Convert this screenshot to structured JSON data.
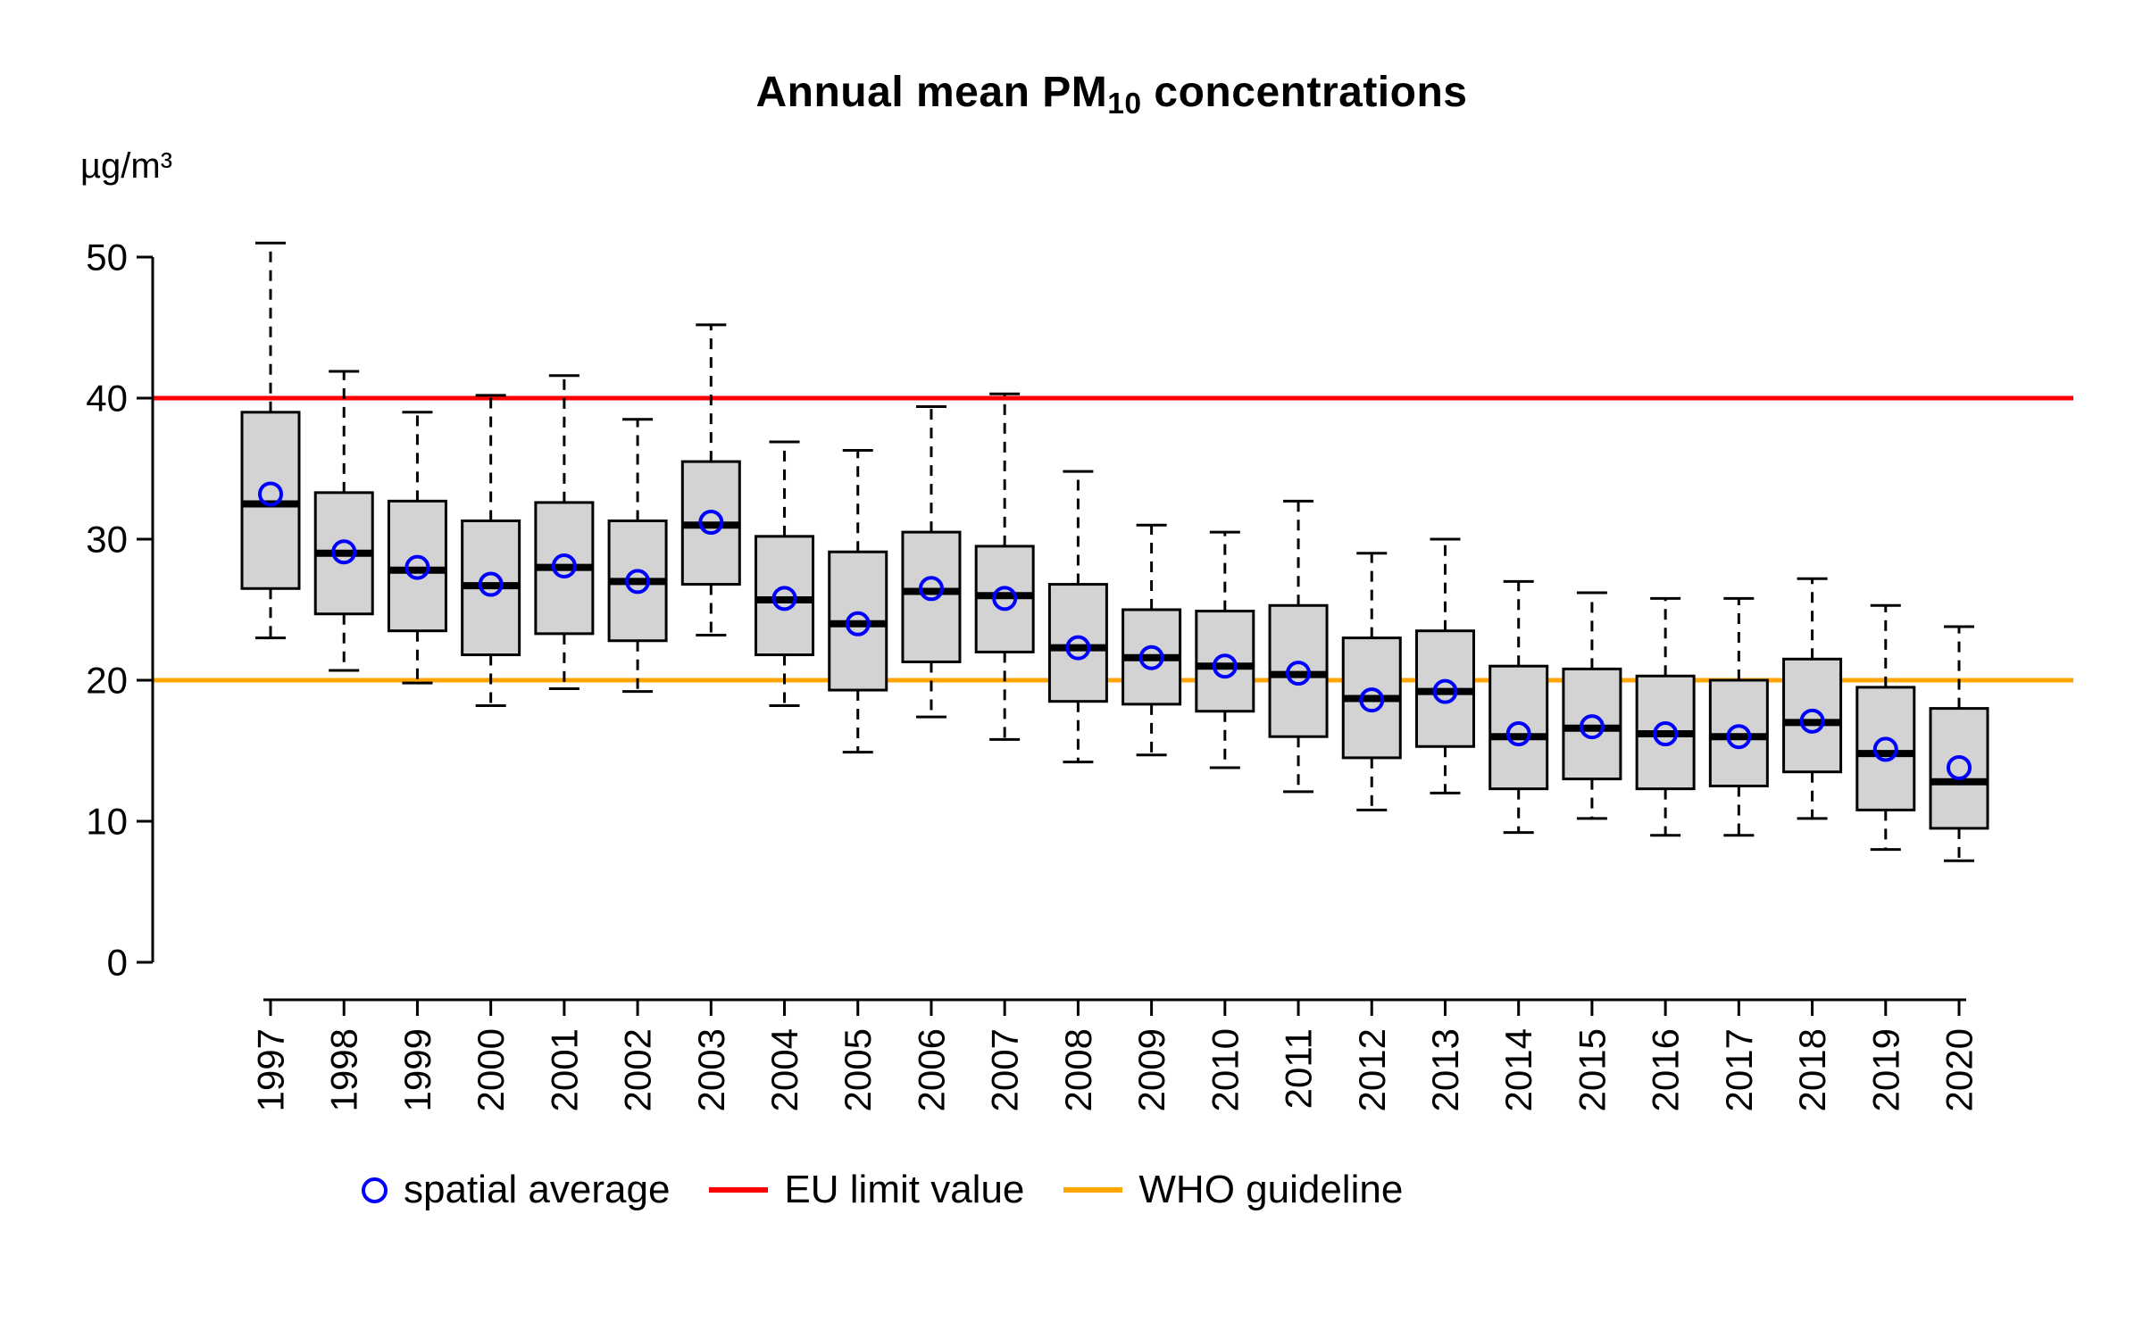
{
  "title": {
    "prefix": "Annual mean PM",
    "sub": "10",
    "suffix": " concentrations"
  },
  "y_axis": {
    "unit": "µg/m³",
    "ticks": [
      0,
      10,
      20,
      30,
      40,
      50
    ]
  },
  "legend": {
    "items": [
      {
        "label": "spatial average",
        "marker": "open-circle",
        "color": "#0000ff"
      },
      {
        "label": "EU limit value",
        "marker": "line",
        "color": "#ff0000"
      },
      {
        "label": "WHO guideline",
        "marker": "line",
        "color": "#ffa500"
      }
    ]
  },
  "colors": {
    "box_fill": "#d3d3d3",
    "box_stroke": "#000000",
    "mean_marker": "#0000ff",
    "eu_limit_line": "#ff0000",
    "who_guideline_line": "#ffa500",
    "axis": "#000000"
  },
  "chart_data": {
    "type": "boxplot",
    "title": "Annual mean PM10 concentrations",
    "xlabel": "",
    "ylabel": "µg/m³",
    "ylim": [
      0,
      52
    ],
    "grid": false,
    "legend_position": "bottom",
    "categories": [
      "1997",
      "1998",
      "1999",
      "2000",
      "2001",
      "2002",
      "2003",
      "2004",
      "2005",
      "2006",
      "2007",
      "2008",
      "2009",
      "2010",
      "2011",
      "2012",
      "2013",
      "2014",
      "2015",
      "2016",
      "2017",
      "2018",
      "2019",
      "2020"
    ],
    "stat_names": [
      "whisker_low",
      "q1",
      "median",
      "q3",
      "whisker_high",
      "spatial_average"
    ],
    "values": [
      [
        23.0,
        26.5,
        32.5,
        39.0,
        51.0,
        33.2
      ],
      [
        20.7,
        24.7,
        29.0,
        33.3,
        41.9,
        29.1
      ],
      [
        19.8,
        23.5,
        27.8,
        32.7,
        39.0,
        28.0
      ],
      [
        18.2,
        21.8,
        26.7,
        31.3,
        40.2,
        26.8
      ],
      [
        19.4,
        23.3,
        28.0,
        32.6,
        41.6,
        28.1
      ],
      [
        19.2,
        22.8,
        27.0,
        31.3,
        38.5,
        27.0
      ],
      [
        23.2,
        26.8,
        31.0,
        35.5,
        45.2,
        31.2
      ],
      [
        18.2,
        21.8,
        25.7,
        30.2,
        36.9,
        25.8
      ],
      [
        14.9,
        19.3,
        24.0,
        29.1,
        36.3,
        24.0
      ],
      [
        17.4,
        21.3,
        26.3,
        30.5,
        39.4,
        26.5
      ],
      [
        15.8,
        22.0,
        26.0,
        29.5,
        40.3,
        25.8
      ],
      [
        14.2,
        18.5,
        22.3,
        26.8,
        34.8,
        22.3
      ],
      [
        14.7,
        18.3,
        21.6,
        25.0,
        31.0,
        21.6
      ],
      [
        13.8,
        17.8,
        21.0,
        24.9,
        30.5,
        21.0
      ],
      [
        12.1,
        16.0,
        20.4,
        25.3,
        32.7,
        20.5
      ],
      [
        10.8,
        14.5,
        18.7,
        23.0,
        29.0,
        18.6
      ],
      [
        12.0,
        15.3,
        19.2,
        23.5,
        30.0,
        19.2
      ],
      [
        9.2,
        12.3,
        16.0,
        21.0,
        27.0,
        16.2
      ],
      [
        10.2,
        13.0,
        16.6,
        20.8,
        26.2,
        16.7
      ],
      [
        9.0,
        12.3,
        16.2,
        20.3,
        25.8,
        16.2
      ],
      [
        9.0,
        12.5,
        16.0,
        20.0,
        25.8,
        16.0
      ],
      [
        10.2,
        13.5,
        17.0,
        21.5,
        27.2,
        17.1
      ],
      [
        8.0,
        10.8,
        14.8,
        19.5,
        25.3,
        15.1
      ],
      [
        7.2,
        9.5,
        12.8,
        18.0,
        23.8,
        13.8
      ]
    ],
    "reference_lines": [
      {
        "name": "EU limit value",
        "y": 40,
        "color": "#ff0000"
      },
      {
        "name": "WHO guideline",
        "y": 20,
        "color": "#ffa500"
      }
    ]
  }
}
